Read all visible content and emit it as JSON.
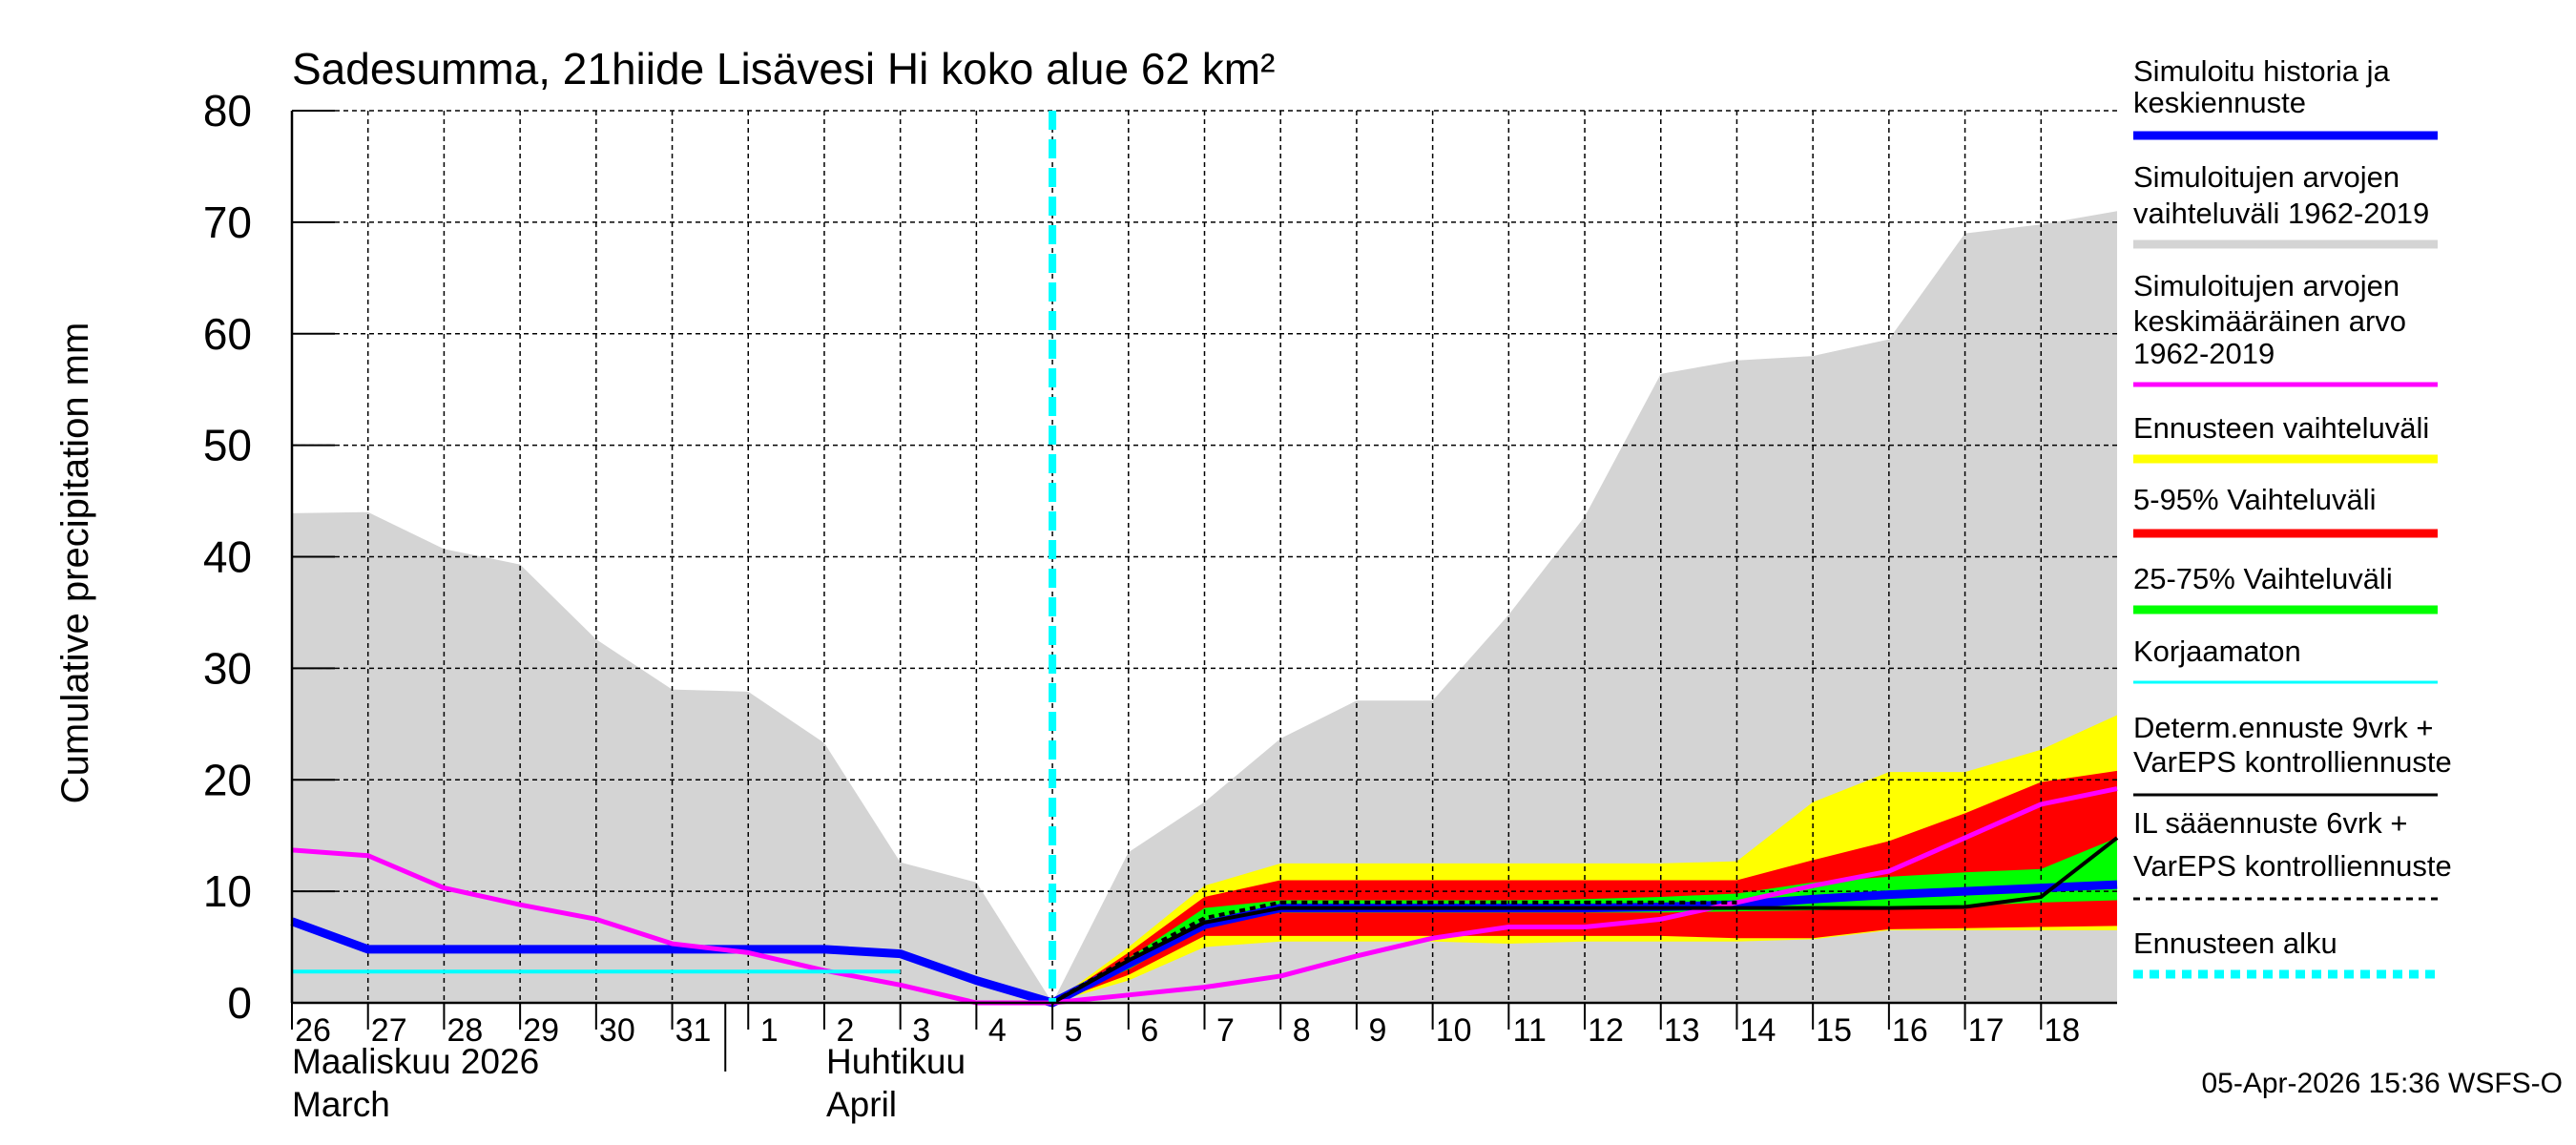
{
  "chart_data": {
    "type": "area",
    "title": "Sadesumma, 21hiide Lisävesi Hi koko alue 62 km²",
    "ylabel": "Cumulative precipitation   mm",
    "xlabel": "",
    "ylim": [
      0,
      80
    ],
    "yticks": [
      "0",
      "10",
      "20",
      "30",
      "40",
      "50",
      "60",
      "70",
      "80"
    ],
    "grid": true,
    "legend_position": "right",
    "x_dates": [
      "2026-03-26",
      "2026-03-27",
      "2026-03-28",
      "2026-03-29",
      "2026-03-30",
      "2026-03-31",
      "2026-04-01",
      "2026-04-02",
      "2026-04-03",
      "2026-04-04",
      "2026-04-05",
      "2026-04-06",
      "2026-04-07",
      "2026-04-08",
      "2026-04-09",
      "2026-04-10",
      "2026-04-11",
      "2026-04-12",
      "2026-04-13",
      "2026-04-14",
      "2026-04-15",
      "2026-04-16",
      "2026-04-17",
      "2026-04-18",
      "2026-04-19"
    ],
    "day_labels": [
      "26",
      "27",
      "28",
      "29",
      "30",
      "31",
      "1",
      "2",
      "3",
      "4",
      "5",
      "6",
      "7",
      "8",
      "9",
      "10",
      "11",
      "12",
      "13",
      "14",
      "15",
      "16",
      "17",
      "18"
    ],
    "month_labels": [
      {
        "line1": "Maaliskuu 2026",
        "line2": "March"
      },
      {
        "line1": "Huhtikuu",
        "line2": "April"
      }
    ],
    "forecast_start": "2026-04-05",
    "bands": [
      {
        "name": "Simuloitujen arvojen vaihteluväli 1962-2019",
        "color": "#d4d4d4",
        "upper": [
          43.9,
          44,
          40.7,
          39.3,
          32.6,
          28.1,
          27.9,
          23.3,
          12.6,
          10.8,
          0,
          13.5,
          18,
          23.7,
          27.1,
          27.1,
          34.8,
          43.6,
          56.4,
          57.6,
          58,
          59.5,
          69,
          69.8,
          71
        ],
        "lower": [
          0,
          0,
          0,
          0,
          0,
          0,
          0,
          0,
          0,
          0,
          0,
          0,
          0,
          0,
          0,
          0,
          0,
          0,
          0,
          0,
          0,
          0,
          0,
          0,
          0
        ]
      },
      {
        "name": "Ennusteen vaihteluväli",
        "color": "#ffff00",
        "upper": [
          null,
          null,
          null,
          null,
          null,
          null,
          null,
          null,
          null,
          null,
          0,
          5,
          10.5,
          12.5,
          12.5,
          12.5,
          12.5,
          12.5,
          12.5,
          12.7,
          18,
          20.7,
          20.7,
          22.7,
          25.8
        ],
        "lower": [
          null,
          null,
          null,
          null,
          null,
          null,
          null,
          null,
          null,
          null,
          0,
          2,
          5,
          5.5,
          5.5,
          5.5,
          5.3,
          5.5,
          5.5,
          5.5,
          5.7,
          6.5,
          6.5,
          6.5,
          6.5
        ]
      },
      {
        "name": "5-95% Vaihteluväli",
        "color": "#ff0000",
        "upper": [
          null,
          null,
          null,
          null,
          null,
          null,
          null,
          null,
          null,
          null,
          0,
          4.5,
          9.5,
          11,
          11,
          11,
          11,
          11,
          11,
          11,
          12.8,
          14.5,
          17,
          19.8,
          20.8
        ],
        "lower": [
          null,
          null,
          null,
          null,
          null,
          null,
          null,
          null,
          null,
          null,
          0,
          2.5,
          6,
          6,
          6,
          6,
          6,
          6,
          6,
          5.8,
          5.8,
          6.6,
          6.7,
          6.8,
          6.9
        ]
      },
      {
        "name": "25-75% Vaihteluväli",
        "color": "#00ff00",
        "upper": [
          null,
          null,
          null,
          null,
          null,
          null,
          null,
          null,
          null,
          null,
          0,
          4,
          8.5,
          9.2,
          9.2,
          9.2,
          9.2,
          9.3,
          9.5,
          9.8,
          10.8,
          11.3,
          11.7,
          12,
          14.8
        ],
        "lower": [
          null,
          null,
          null,
          null,
          null,
          null,
          null,
          null,
          null,
          null,
          0,
          3,
          6.8,
          8.1,
          8.1,
          8.1,
          8.1,
          8.1,
          8.1,
          8.2,
          8.3,
          8.5,
          8.7,
          9,
          9.2
        ]
      }
    ],
    "series": [
      {
        "name": "Simuloitu historia ja keskiennuste",
        "color": "#0000ff",
        "width": 9,
        "values": [
          7.3,
          4.8,
          4.8,
          4.8,
          4.8,
          4.8,
          4.8,
          4.8,
          4.4,
          2,
          0,
          3.5,
          7,
          8.5,
          8.5,
          8.5,
          8.5,
          8.5,
          8.6,
          8.8,
          9.3,
          9.7,
          10,
          10.3,
          10.6
        ]
      },
      {
        "name": "Simuloitujen arvojen keskimääräinen arvo 1962-2019",
        "color": "#ff00ff",
        "width": 5,
        "values": [
          13.7,
          13.2,
          10.3,
          8.8,
          7.5,
          5.3,
          4.5,
          2.9,
          1.6,
          0,
          0,
          0.7,
          1.4,
          2.4,
          4.2,
          5.8,
          6.8,
          6.8,
          7.5,
          9,
          10.5,
          11.8,
          14.8,
          17.8,
          19.2
        ]
      },
      {
        "name": "Korjaamaton",
        "color": "#00ffff",
        "width": 4,
        "values": [
          2.8,
          2.8,
          2.8,
          2.8,
          2.8,
          2.8,
          2.8,
          2.8,
          2.8,
          null,
          null,
          null,
          null,
          null,
          null,
          null,
          null,
          null,
          null,
          null,
          null,
          null,
          null,
          null,
          null
        ]
      },
      {
        "name": "Determ.ennuste 9vrk + VarEPS kontrolliennuste",
        "color": "#000000",
        "width": 4,
        "values": [
          null,
          null,
          null,
          null,
          null,
          null,
          null,
          null,
          null,
          null,
          0,
          3.8,
          7.2,
          8.5,
          8.5,
          8.5,
          8.5,
          8.5,
          8.5,
          8.5,
          8.5,
          8.5,
          8.6,
          9.5,
          14.8
        ]
      },
      {
        "name": "IL sääennuste 6vrk + VarEPS kontrolliennuste",
        "color": "#000000",
        "width": 4,
        "dash": true,
        "values": [
          null,
          null,
          null,
          null,
          null,
          null,
          null,
          null,
          null,
          null,
          0,
          4,
          7.6,
          9,
          9,
          9,
          9,
          9,
          9,
          9,
          null,
          null,
          null,
          null,
          null
        ]
      }
    ],
    "legend": [
      {
        "lines": [
          "Simuloitu historia ja",
          "keskiennuste"
        ],
        "color": "#0000ff",
        "style": "thick"
      },
      {
        "lines": [
          "Simuloitujen arvojen",
          "vaihteluväli 1962-2019"
        ],
        "color": "#d4d4d4",
        "style": "thick"
      },
      {
        "lines": [
          "Simuloitujen arvojen",
          "keskimääräinen arvo",
          "1962-2019"
        ],
        "color": "#ff00ff",
        "style": "medium"
      },
      {
        "lines": [
          "Ennusteen vaihteluväli"
        ],
        "color": "#ffff00",
        "style": "thick"
      },
      {
        "lines": [
          "5-95% Vaihteluväli"
        ],
        "color": "#ff0000",
        "style": "thick"
      },
      {
        "lines": [
          "25-75% Vaihteluväli"
        ],
        "color": "#00ff00",
        "style": "thick"
      },
      {
        "lines": [
          "Korjaamaton"
        ],
        "color": "#00ffff",
        "style": "thin"
      },
      {
        "lines": [
          "Determ.ennuste 9vrk +",
          "VarEPS kontrolliennuste"
        ],
        "color": "#000000",
        "style": "thin"
      },
      {
        "lines": [
          "IL sääennuste 6vrk  +",
          "VarEPS kontrolliennuste"
        ],
        "color": "#000000",
        "style": "dashed"
      },
      {
        "lines": [
          "Ennusteen alku"
        ],
        "color": "#00ffff",
        "style": "dotted-thick"
      }
    ],
    "timestamp": "05-Apr-2026 15:36 WSFS-O"
  }
}
